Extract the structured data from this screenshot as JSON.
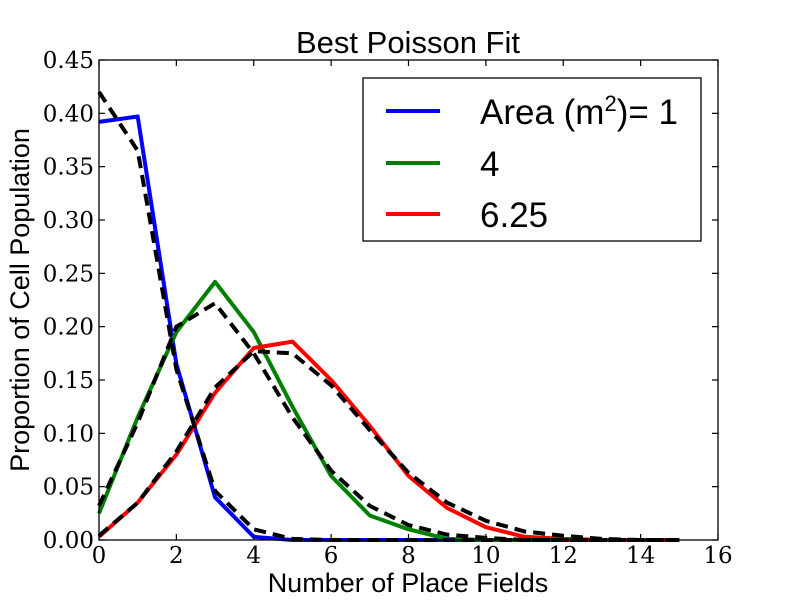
{
  "chart_data": {
    "type": "line",
    "title": "Best Poisson Fit",
    "xlabel": "Number of Place Fields",
    "ylabel": "Proportion of Cell Population",
    "xlim": [
      0,
      16
    ],
    "ylim": [
      0,
      0.45
    ],
    "xticks": [
      "0",
      "2",
      "4",
      "6",
      "8",
      "10",
      "12",
      "14",
      "16"
    ],
    "yticks": [
      "0.00",
      "0.05",
      "0.10",
      "0.15",
      "0.20",
      "0.25",
      "0.30",
      "0.35",
      "0.40",
      "0.45"
    ],
    "grid": false,
    "legend_position": "top-right",
    "legend_labels": {
      "area_prefix": "Area (m",
      "area_sup": "2",
      "area_suffix": ")= 1"
    },
    "series": [
      {
        "name": "Area (m2)= 1",
        "color": "#0000ff",
        "style": "solid",
        "x": [
          0,
          1,
          2,
          3,
          4,
          5,
          6,
          7,
          8,
          9,
          10,
          11,
          12,
          13,
          14,
          15
        ],
        "y": [
          0.392,
          0.397,
          0.165,
          0.04,
          0.003,
          0.0,
          0.0,
          0.0,
          0.0,
          0.0,
          0.0,
          0.0,
          0.0,
          0.0,
          0.0,
          0.0
        ]
      },
      {
        "name": "4",
        "color": "#008000",
        "style": "solid",
        "x": [
          0,
          1,
          2,
          3,
          4,
          5,
          6,
          7,
          8,
          9,
          10,
          11,
          12,
          13,
          14,
          15
        ],
        "y": [
          0.025,
          0.115,
          0.195,
          0.242,
          0.195,
          0.125,
          0.06,
          0.023,
          0.01,
          0.001,
          0.0,
          0.0,
          0.0,
          0.0,
          0.0,
          0.0
        ]
      },
      {
        "name": "6.25",
        "color": "#ff0000",
        "style": "solid",
        "x": [
          0,
          1,
          2,
          3,
          4,
          5,
          6,
          7,
          8,
          9,
          10,
          11,
          12,
          13,
          14,
          15
        ],
        "y": [
          0.003,
          0.035,
          0.08,
          0.138,
          0.18,
          0.186,
          0.15,
          0.107,
          0.06,
          0.03,
          0.012,
          0.003,
          0.001,
          0.0,
          0.0,
          0.0
        ]
      }
    ],
    "fit_series": [
      {
        "color": "#000000",
        "style": "dashed",
        "x": [
          0,
          1,
          2,
          3,
          4,
          5,
          6,
          7,
          8,
          9,
          10,
          11,
          12,
          13,
          14,
          15
        ],
        "y": [
          0.42,
          0.365,
          0.16,
          0.046,
          0.01,
          0.001,
          0.0,
          0.0,
          0.0,
          0.0,
          0.0,
          0.0,
          0.0,
          0.0,
          0.0,
          0.0
        ]
      },
      {
        "color": "#000000",
        "style": "dashed",
        "x": [
          0,
          1,
          2,
          3,
          4,
          5,
          6,
          7,
          8,
          9,
          10,
          11,
          12,
          13,
          14,
          15
        ],
        "y": [
          0.032,
          0.11,
          0.2,
          0.222,
          0.175,
          0.115,
          0.065,
          0.032,
          0.014,
          0.005,
          0.002,
          0.0,
          0.0,
          0.0,
          0.0,
          0.0
        ]
      },
      {
        "color": "#000000",
        "style": "dashed",
        "x": [
          0,
          1,
          2,
          3,
          4,
          5,
          6,
          7,
          8,
          9,
          10,
          11,
          12,
          13,
          14,
          15
        ],
        "y": [
          0.004,
          0.035,
          0.083,
          0.143,
          0.177,
          0.175,
          0.145,
          0.103,
          0.063,
          0.035,
          0.018,
          0.008,
          0.004,
          0.001,
          0.0,
          0.0
        ]
      }
    ]
  }
}
